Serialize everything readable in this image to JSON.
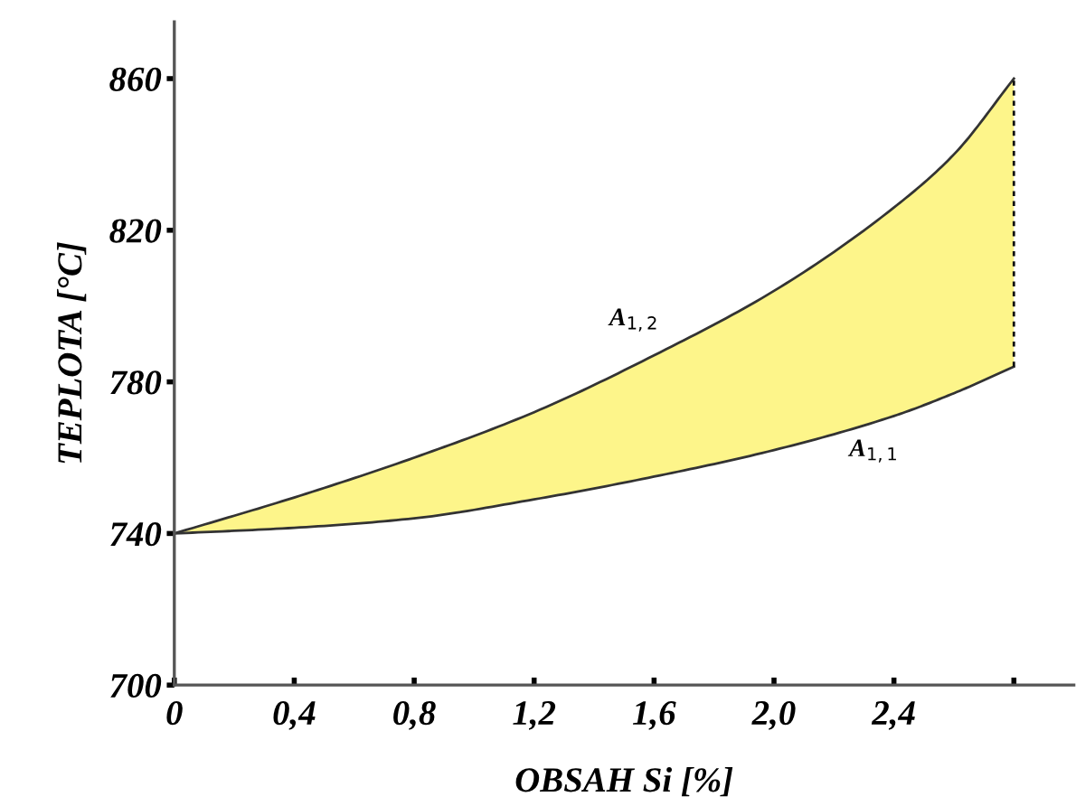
{
  "chart_data": {
    "type": "line",
    "xlabel": "OBSAH Si [%]",
    "ylabel": "TEPLOTA [°C]",
    "x": [
      0,
      0.4,
      0.8,
      1.2,
      1.6,
      2.0,
      2.4,
      2.6,
      2.8
    ],
    "series": [
      {
        "name": "A$_{1,1}$",
        "color": "#333333",
        "values": [
          740,
          741.5,
          744,
          749,
          755,
          762,
          771,
          777,
          784
        ]
      },
      {
        "name": "A$_{1,2}$",
        "color": "#333333",
        "values": [
          740,
          749.5,
          760,
          772,
          787,
          804,
          826,
          840,
          860
        ],
        "lower": [
          740,
          741.5,
          744,
          749,
          755,
          762,
          771,
          777,
          784
        ],
        "upper": [
          740,
          749.5,
          760,
          772,
          787,
          804,
          826,
          840,
          860
        ]
      },
      {
        "color": "#111111",
        "line_style": "dashed",
        "x": [
          2.8,
          2.8
        ],
        "values": [
          784,
          860
        ]
      }
    ],
    "xlim": [
      0,
      3.0
    ],
    "ylim": [
      700,
      875
    ],
    "xticks": [
      0,
      {
        "value": 0.4,
        "label": "0,4"
      },
      {
        "value": 0.8,
        "label": "0,8"
      },
      {
        "value": 1.2,
        "label": "1,2"
      },
      {
        "value": 1.6,
        "label": "1,6"
      },
      {
        "value": 2.0,
        "label": "2,0"
      },
      {
        "value": 2.4,
        "label": "2,4"
      },
      {
        "value": 2.8,
        "label": null
      }
    ],
    "yticks": [
      700,
      740,
      780,
      820,
      860
    ],
    "grid": false,
    "legend": false
  }
}
